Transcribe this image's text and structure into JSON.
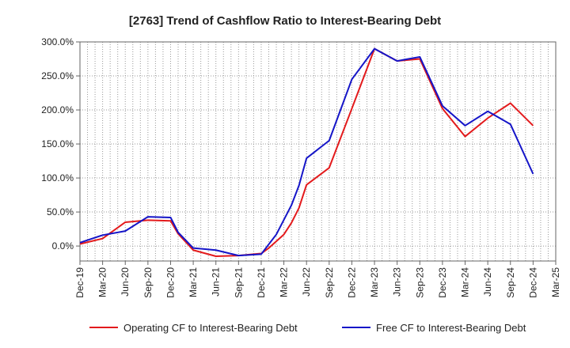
{
  "chart_data": {
    "type": "line",
    "title": "[2763]  Trend of Cashflow Ratio to Interest-Bearing Debt",
    "xlabel": "",
    "ylabel": "",
    "ylim": [
      -22,
      300
    ],
    "y_ticks": [
      0,
      50,
      100,
      150,
      200,
      250,
      300
    ],
    "y_tick_labels": [
      "0.0%",
      "50.0%",
      "100.0%",
      "150.0%",
      "200.0%",
      "250.0%",
      "300.0%"
    ],
    "x_tick_labels": [
      "Dec-19",
      "Mar-20",
      "Jun-20",
      "Sep-20",
      "Dec-20",
      "Mar-21",
      "Jun-21",
      "Sep-21",
      "Dec-21",
      "Mar-22",
      "Jun-22",
      "Sep-22",
      "Dec-22",
      "Mar-23",
      "Jun-23",
      "Sep-23",
      "Dec-23",
      "Mar-24",
      "Jun-24",
      "Sep-24",
      "Dec-24",
      "Mar-25"
    ],
    "x_range_months": [
      0,
      63
    ],
    "grid": true,
    "legend_position": "bottom",
    "series": [
      {
        "name": "Operating CF to Interest-Bearing Debt",
        "color": "#e31a1c",
        "points": [
          [
            0,
            3
          ],
          [
            3,
            11
          ],
          [
            6,
            35
          ],
          [
            9,
            38
          ],
          [
            12,
            37
          ],
          [
            13,
            18
          ],
          [
            15,
            -6
          ],
          [
            18,
            -15
          ],
          [
            21,
            -14
          ],
          [
            24,
            -11
          ],
          [
            25,
            -3
          ],
          [
            27,
            17
          ],
          [
            28,
            34
          ],
          [
            29,
            56
          ],
          [
            30,
            90
          ],
          [
            33,
            115
          ],
          [
            36,
            202
          ],
          [
            39,
            290
          ],
          [
            42,
            272
          ],
          [
            45,
            275
          ],
          [
            48,
            202
          ],
          [
            51,
            161
          ],
          [
            54,
            188
          ],
          [
            57,
            210
          ],
          [
            60,
            177
          ]
        ]
      },
      {
        "name": "Free CF to Interest-Bearing Debt",
        "color": "#1515c8",
        "points": [
          [
            0,
            5
          ],
          [
            3,
            16
          ],
          [
            6,
            22
          ],
          [
            9,
            43
          ],
          [
            12,
            42
          ],
          [
            13,
            20
          ],
          [
            15,
            -3
          ],
          [
            18,
            -6
          ],
          [
            21,
            -14
          ],
          [
            24,
            -12
          ],
          [
            26,
            17
          ],
          [
            28,
            60
          ],
          [
            29,
            89
          ],
          [
            30,
            129
          ],
          [
            33,
            155
          ],
          [
            36,
            245
          ],
          [
            39,
            290
          ],
          [
            42,
            272
          ],
          [
            45,
            278
          ],
          [
            48,
            206
          ],
          [
            51,
            177
          ],
          [
            54,
            198
          ],
          [
            57,
            179
          ],
          [
            60,
            106
          ]
        ]
      }
    ]
  }
}
